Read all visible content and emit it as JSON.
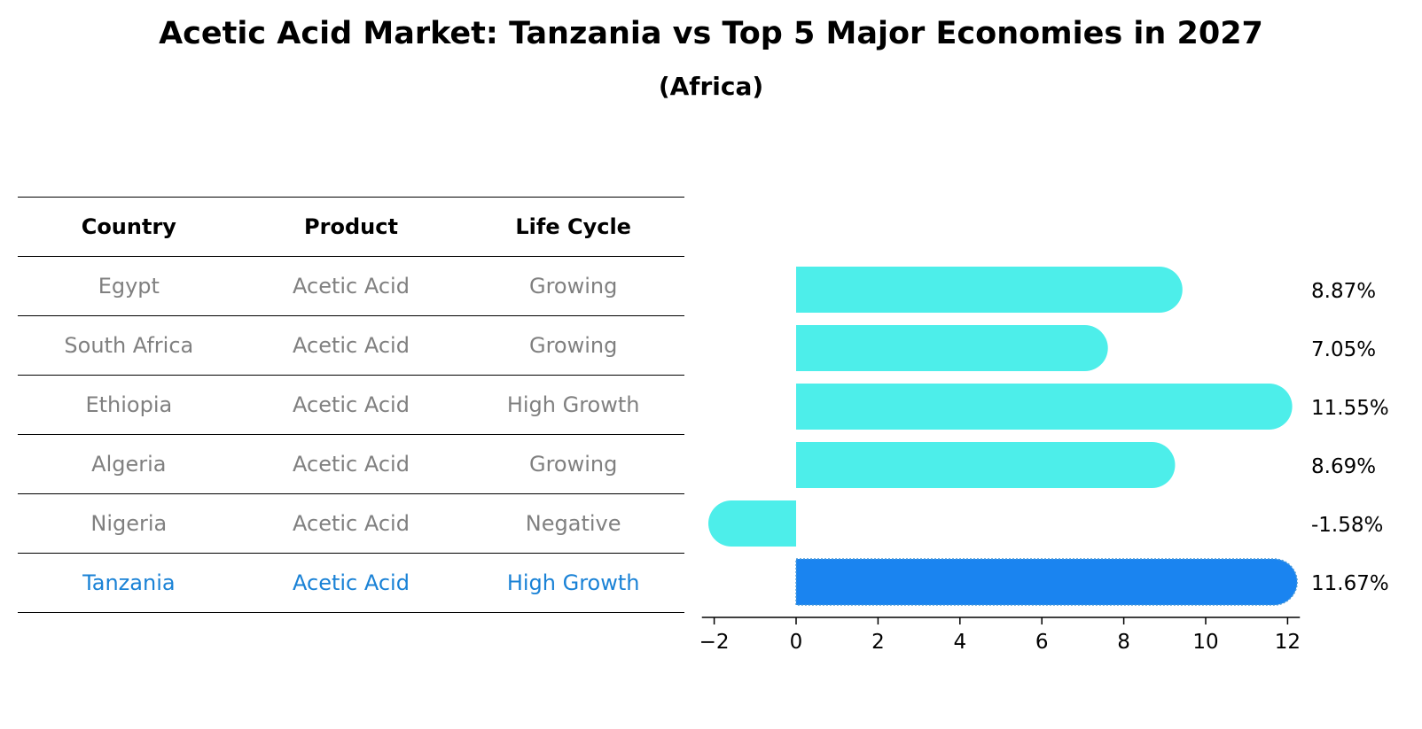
{
  "title": "Acetic Acid Market: Tanzania vs Top 5 Major Economies in 2027",
  "subtitle": "(Africa)",
  "table": {
    "headers": [
      "Country",
      "Product",
      "Life Cycle"
    ],
    "rows": [
      [
        "Egypt",
        "Acetic Acid",
        "Growing"
      ],
      [
        "South Africa",
        "Acetic Acid",
        "Growing"
      ],
      [
        "Ethiopia",
        "Acetic Acid",
        "High Growth"
      ],
      [
        "Algeria",
        "Acetic Acid",
        "Growing"
      ],
      [
        "Nigeria",
        "Acetic Acid",
        "Negative"
      ],
      [
        "Tanzania",
        "Acetic Acid",
        "High Growth"
      ]
    ]
  },
  "colors": {
    "bar": "#4deeea",
    "highlight_bar": "#1a84f0",
    "highlight_text": "#1a82d6",
    "muted_text": "#808080"
  },
  "chart_data": {
    "type": "bar",
    "orientation": "horizontal",
    "categories": [
      "Egypt",
      "South Africa",
      "Ethiopia",
      "Algeria",
      "Nigeria",
      "Tanzania"
    ],
    "values": [
      8.87,
      7.05,
      11.55,
      8.69,
      -1.58,
      11.67
    ],
    "data_labels": [
      "8.87%",
      "7.05%",
      "11.55%",
      "8.69%",
      "-1.58%",
      "11.67%"
    ],
    "highlight": "Tanzania",
    "xlim": [
      -2.3,
      12.3
    ],
    "xticks": [
      -2,
      0,
      2,
      4,
      6,
      8,
      10,
      12
    ],
    "xtick_labels": [
      "−2",
      "0",
      "2",
      "4",
      "6",
      "8",
      "10",
      "12"
    ],
    "xlabel": "",
    "ylabel": "",
    "grid": false
  }
}
